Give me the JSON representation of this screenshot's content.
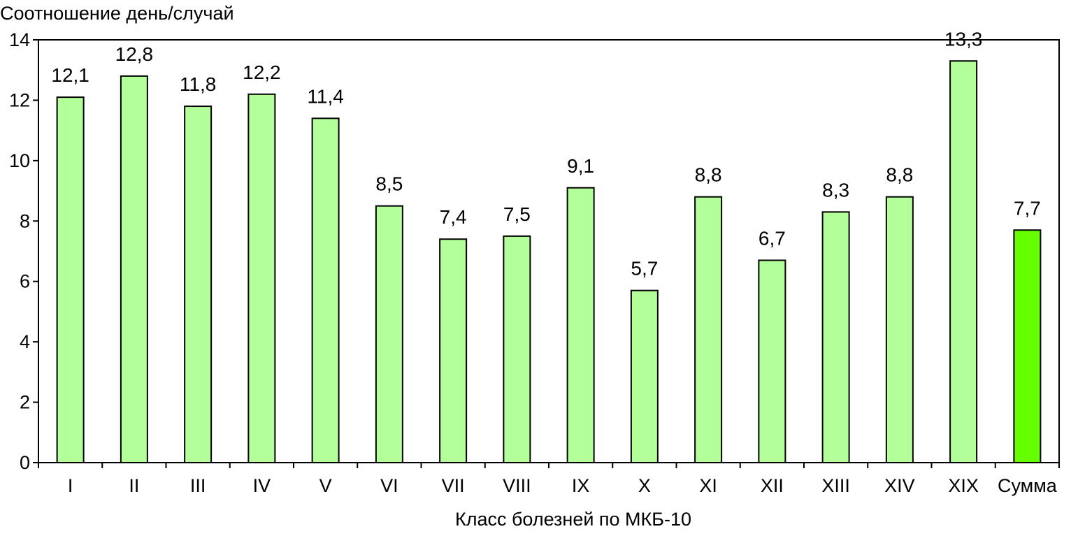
{
  "chart_data": {
    "type": "bar",
    "ylabel": "Соотношение день/случай",
    "xlabel": "Класс болезней по МКБ-10",
    "ylim": [
      0,
      14
    ],
    "yticks": [
      0,
      2,
      4,
      6,
      8,
      10,
      12,
      14
    ],
    "grid": false,
    "categories": [
      "I",
      "II",
      "III",
      "IV",
      "V",
      "VI",
      "VII",
      "VIII",
      "IX",
      "X",
      "XI",
      "XII",
      "XIII",
      "XIV",
      "XIX",
      "Сумма"
    ],
    "values": [
      12.1,
      12.8,
      11.8,
      12.2,
      11.4,
      8.5,
      7.4,
      7.5,
      9.1,
      5.7,
      8.8,
      6.7,
      8.3,
      8.8,
      13.3,
      7.7
    ],
    "value_labels": [
      "12,1",
      "12,8",
      "11,8",
      "12,2",
      "11,4",
      "8,5",
      "7,4",
      "7,5",
      "9,1",
      "5,7",
      "8,8",
      "6,7",
      "8,3",
      "8,8",
      "13,3",
      "7,7"
    ],
    "colors": {
      "bar": "#b3ff99",
      "highlight_bar": "#66ff00",
      "axis": "#000000"
    },
    "highlight_categories": [
      "Сумма"
    ]
  }
}
